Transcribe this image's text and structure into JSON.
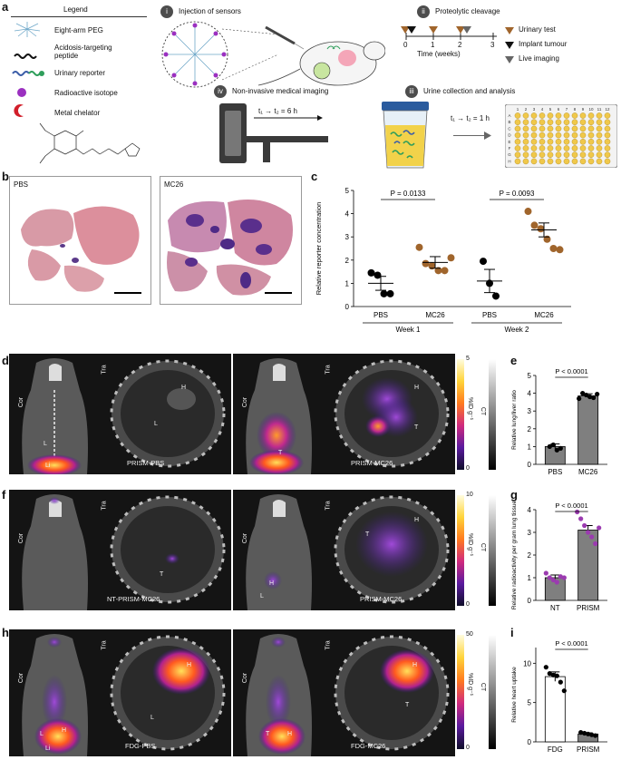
{
  "panel_letters": [
    "a",
    "b",
    "c",
    "d",
    "e",
    "f",
    "g",
    "h",
    "i"
  ],
  "legend": {
    "title": "Legend",
    "items": [
      "Eight-arm PEG",
      "Acidosis-targeting peptide",
      "Urinary reporter",
      "Radioactive isotope",
      "Metal chelator"
    ]
  },
  "steps": {
    "i": {
      "num": "i",
      "title": "Injection of sensors"
    },
    "ii": {
      "num": "ii",
      "title": "Proteolytic cleavage"
    },
    "iii": {
      "num": "iii",
      "title": "Urine collection and analysis",
      "time": "t₁ → t₂ = 1 h"
    },
    "iv": {
      "num": "iv",
      "title": "Non-invasive medical imaging",
      "time": "t₁ → t₂ = 6 h"
    }
  },
  "timeline": {
    "ticks": [
      "0",
      "1",
      "2",
      "3"
    ],
    "xlabel": "Time (weeks)",
    "legend": [
      "Urinary test",
      "Implant tumour",
      "Live imaging"
    ]
  },
  "plate": {
    "cols": [
      "1",
      "2",
      "3",
      "4",
      "5",
      "6",
      "7",
      "8",
      "9",
      "10",
      "11",
      "12"
    ],
    "rows": [
      "A",
      "B",
      "C",
      "D",
      "E",
      "F",
      "G",
      "H"
    ]
  },
  "histology": {
    "left_label": "PBS",
    "right_label": "MC26"
  },
  "labels": {
    "cor": "Cor",
    "tra": "Tra",
    "ct": "CT",
    "L": "L",
    "H": "H",
    "T": "T",
    "Li": "Li",
    "d_left": "PRISM-PBS",
    "d_right": "PRISM-MC26",
    "f_left": "NT-PRISM-MC26",
    "f_right": "PRISM-MC26",
    "h_left": "FDG-PBS",
    "h_right": "FDG-MC26",
    "unit": "%ID g⁻¹"
  },
  "colorbars": {
    "d": {
      "max": "5",
      "min": "0"
    },
    "f": {
      "max": "10",
      "min": "0"
    },
    "h": {
      "max": "50",
      "min": "0"
    }
  },
  "chart_data": [
    {
      "panel": "c",
      "type": "scatter",
      "ylabel": "Relative reporter concentration",
      "categories": [
        "PBS",
        "MC26",
        "PBS",
        "MC26"
      ],
      "groups": [
        "Week 1",
        "Week 2"
      ],
      "ylim": [
        0,
        5
      ],
      "yticks": [
        "0",
        "1",
        "2",
        "3",
        "4",
        "5"
      ],
      "significance": [
        {
          "text": "P = 0.0133",
          "pair": [
            0,
            1
          ]
        },
        {
          "text": "P = 0.0093",
          "pair": [
            2,
            3
          ]
        }
      ],
      "series": [
        {
          "category": "PBS",
          "week": 1,
          "color": "#000000",
          "points": [
            1.45,
            1.35,
            0.55,
            0.55
          ],
          "mean": 1.0,
          "sem": 0.3
        },
        {
          "category": "MC26",
          "week": 1,
          "color": "#a0652c",
          "points": [
            2.55,
            1.85,
            1.75,
            1.55,
            1.55,
            2.1
          ],
          "mean": 1.9,
          "sem": 0.25
        },
        {
          "category": "PBS",
          "week": 2,
          "color": "#000000",
          "points": [
            1.95,
            1.0,
            0.45
          ],
          "mean": 1.1,
          "sem": 0.5
        },
        {
          "category": "MC26",
          "week": 2,
          "color": "#a0652c",
          "points": [
            4.1,
            3.5,
            3.35,
            2.9,
            2.5,
            2.45
          ],
          "mean": 3.3,
          "sem": 0.3
        }
      ]
    },
    {
      "panel": "e",
      "type": "bar",
      "ylabel": "Relative lung/liver ratio",
      "categories": [
        "PBS",
        "MC26"
      ],
      "values": [
        1.0,
        3.85
      ],
      "errors": [
        0.15,
        0.12
      ],
      "ylim": [
        0,
        5
      ],
      "yticks": [
        "0",
        "1",
        "2",
        "3",
        "4",
        "5"
      ],
      "bar_colors": [
        "#7f7f7f",
        "#7f7f7f"
      ],
      "point_colors": [
        "#000000",
        "#000000"
      ],
      "points": [
        [
          1.0,
          1.1,
          0.8,
          0.9
        ],
        [
          3.7,
          4.0,
          3.9,
          3.8,
          3.75,
          3.95
        ]
      ],
      "significance": {
        "text": "P < 0.0001"
      }
    },
    {
      "panel": "g",
      "type": "bar",
      "ylabel": "Relative radioactivity per gram lung tissue",
      "categories": [
        "NT",
        "PRISM"
      ],
      "values": [
        1.0,
        3.1
      ],
      "errors": [
        0.12,
        0.2
      ],
      "ylim": [
        0,
        4
      ],
      "yticks": [
        "0",
        "1",
        "2",
        "3",
        "4"
      ],
      "bar_colors": [
        "#7f7f7f",
        "#7f7f7f"
      ],
      "point_colors": [
        "#9b3bb0",
        "#9b3bb0"
      ],
      "points": [
        [
          1.2,
          1.0,
          0.9,
          0.8,
          1.05,
          1.0
        ],
        [
          3.9,
          3.6,
          3.3,
          3.0,
          2.8,
          2.5,
          3.2
        ]
      ],
      "significance": {
        "text": "P < 0.0001"
      }
    },
    {
      "panel": "i",
      "type": "bar",
      "ylabel": "Relative heart uptake",
      "categories": [
        "FDG",
        "PRISM"
      ],
      "values": [
        8.3,
        1.0
      ],
      "errors": [
        0.6,
        0.15
      ],
      "ylim": [
        0,
        12
      ],
      "yticks": [
        "0",
        "5",
        "10"
      ],
      "bar_colors": [
        "#ffffff",
        "#7f7f7f"
      ],
      "point_colors": [
        "#000000",
        "#000000"
      ],
      "points": [
        [
          9.5,
          8.7,
          8.5,
          8.4,
          7.6,
          6.5
        ],
        [
          1.2,
          1.1,
          1.0,
          0.9,
          0.8
        ]
      ],
      "significance": {
        "text": "P < 0.0001"
      }
    }
  ]
}
